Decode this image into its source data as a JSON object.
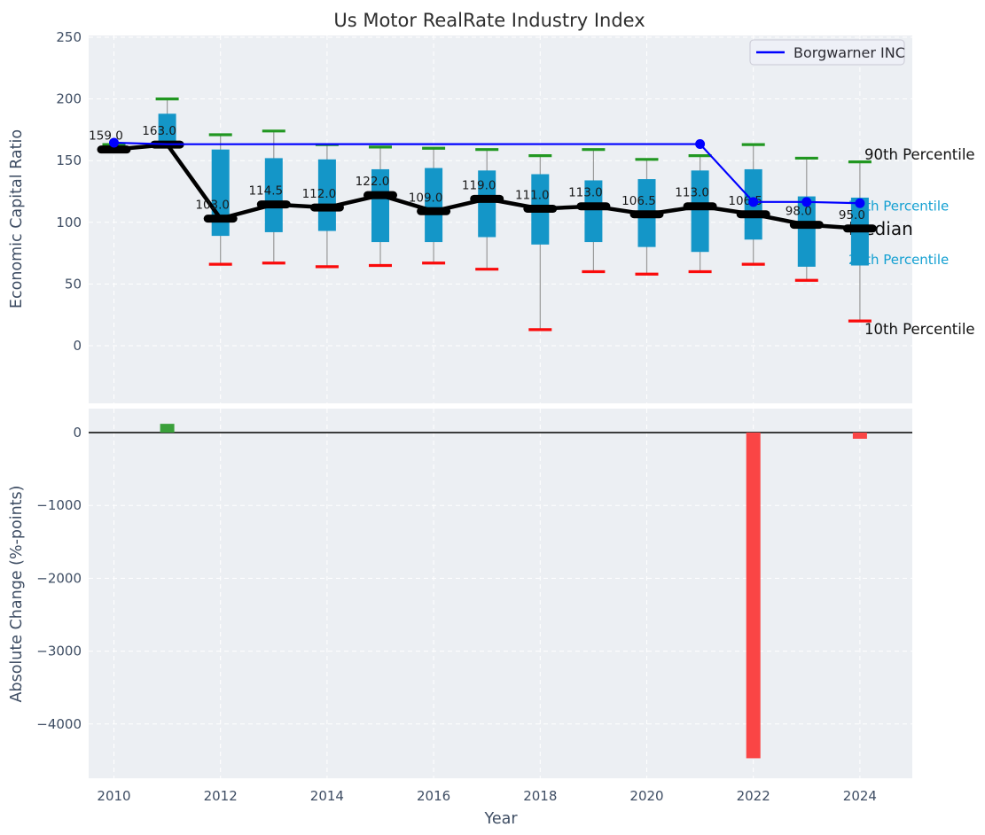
{
  "title": "Us Motor RealRate Industry Index",
  "legend": {
    "label": "Borgwarner INC"
  },
  "colors": {
    "box": "#1496c8",
    "whisker": "#999999",
    "cap_high": "#219721",
    "cap_low": "#fa0a0a",
    "median_line": "#000000",
    "company_line": "#0000ff",
    "axes_bg": "#eceff3",
    "grid": "#ffffff",
    "tick_text": "#3e4d63",
    "title_text": "#2e2e2e",
    "label_text": "#1a1a1a",
    "bar_positive": "#3aa03a",
    "bar_negative": "#fa4545",
    "zero_line": "#000000",
    "annotation_cyan": "#14a0d2",
    "annotation_black": "#111111",
    "legend_bg": "#eef0f7",
    "legend_border": "#c9c9d4"
  },
  "chart_data": [
    {
      "type": "boxplot+line",
      "title": "Us Motor RealRate Industry Index",
      "xlabel": "Year",
      "ylabel": "Economic Capital Ratio",
      "years": [
        2010,
        2011,
        2012,
        2013,
        2014,
        2015,
        2016,
        2017,
        2018,
        2019,
        2020,
        2021,
        2022,
        2023,
        2024
      ],
      "xticks": [
        2010,
        2012,
        2014,
        2016,
        2018,
        2020,
        2022,
        2024
      ],
      "yticks": [
        0,
        50,
        100,
        150,
        200,
        250
      ],
      "ylim": [
        -47,
        251
      ],
      "xlim": [
        2009.5,
        2024.9
      ],
      "grid": true,
      "legend_position": "upper right",
      "median": [
        159,
        163,
        103,
        114.5,
        112,
        122,
        109,
        119,
        111,
        113,
        106.5,
        113,
        106.5,
        98,
        95
      ],
      "median_labels": [
        "159.0",
        "163.0",
        "103.0",
        "114.5",
        "112.0",
        "122.0",
        "109.0",
        "119.0",
        "111.0",
        "113.0",
        "106.5",
        "113.0",
        "106.5",
        "98.0",
        "95.0"
      ],
      "p90": [
        163,
        200,
        171,
        174,
        163,
        161,
        160,
        159,
        154,
        159,
        151,
        154,
        163,
        152,
        149
      ],
      "p75": [
        162,
        188,
        159,
        152,
        151,
        143,
        144,
        142,
        139,
        134,
        135,
        142,
        143,
        121,
        120
      ],
      "p25": [
        158,
        163,
        89,
        92,
        93,
        84,
        84,
        88,
        82,
        84,
        80,
        76,
        86,
        64,
        65
      ],
      "p10": [
        157,
        161,
        66,
        67,
        64,
        65,
        67,
        62,
        13,
        60,
        58,
        60,
        66,
        53,
        20
      ],
      "company_series": {
        "name": "Borgwarner INC",
        "x": [
          2010,
          2011,
          2021,
          2022,
          2023,
          2024
        ],
        "y": [
          164.5,
          163.3,
          163.4,
          116.5,
          116.5,
          115.5
        ],
        "marker_x": [
          2010,
          2021,
          2022,
          2023,
          2024
        ]
      },
      "annotations": [
        {
          "text": "90th Percentile",
          "value": 155,
          "style": "black",
          "size": 16.5,
          "x": 975
        },
        {
          "text": "75th Percentile",
          "value": 113.5,
          "style": "cyan",
          "size": 15,
          "x": 957
        },
        {
          "text": "Median",
          "value": 95,
          "style": "black",
          "size": 20,
          "x": 957
        },
        {
          "text": "25th Percentile",
          "value": 70,
          "style": "cyan",
          "size": 15,
          "x": 957
        },
        {
          "text": "10th Percentile",
          "value": 13.5,
          "style": "black",
          "size": 16.5,
          "x": 975
        }
      ]
    },
    {
      "type": "bar",
      "xlabel": "Year",
      "ylabel": "Absolute Change (%-points)",
      "xticks": [
        2010,
        2012,
        2014,
        2016,
        2018,
        2020,
        2022,
        2024
      ],
      "yticks": [
        {
          "value": 0,
          "label": "0"
        },
        {
          "value": -1000,
          "label": "−1000"
        },
        {
          "value": -2000,
          "label": "−2000"
        },
        {
          "value": -3000,
          "label": "−3000"
        },
        {
          "value": -4000,
          "label": "−4000"
        }
      ],
      "ylim": [
        -4740,
        330
      ],
      "grid": true,
      "bars": [
        {
          "x": 2011,
          "value": 120
        },
        {
          "x": 2022,
          "value": -4470
        },
        {
          "x": 2024,
          "value": -85
        }
      ]
    }
  ]
}
